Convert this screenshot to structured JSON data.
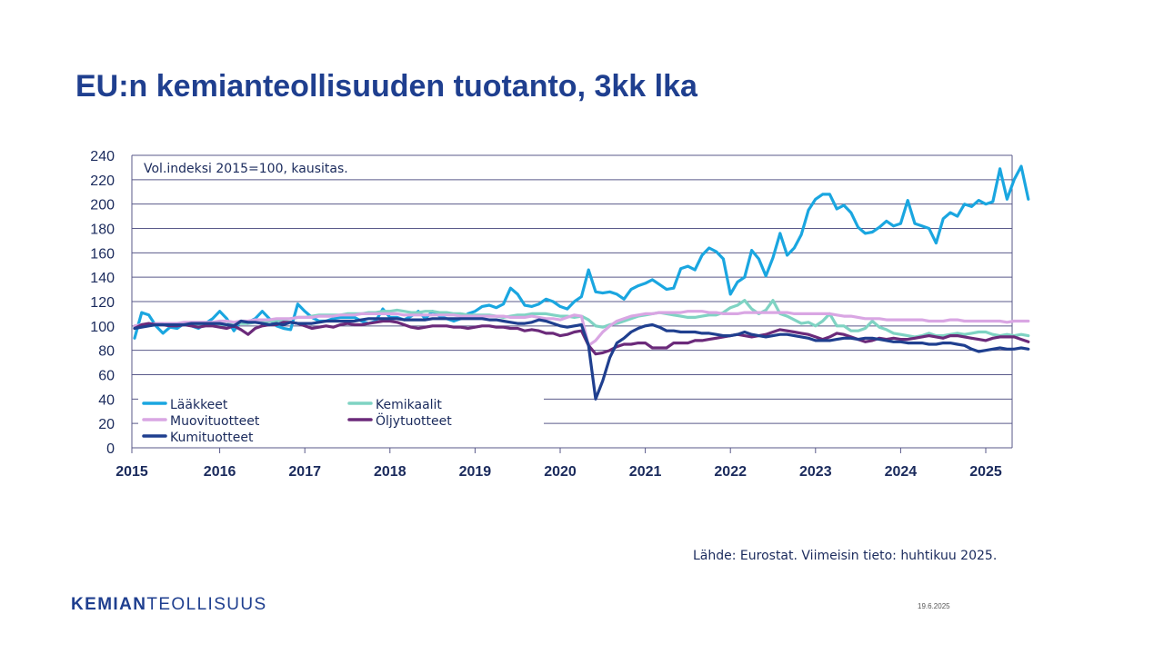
{
  "slide": {
    "title": "EU:n kemianteollisuuden tuotanto, 3kk lka",
    "source_note": "Lähde: Eurostat. Viimeisin tieto: huhtikuu 2025.",
    "logo_bold": "KEMIAN",
    "logo_light": "TEOLLISUUS",
    "date": "19.6.2025"
  },
  "chart_data": {
    "type": "line",
    "annotation": "Vol.indeksi 2015=100, kausitas.",
    "ylim": [
      0,
      240
    ],
    "yticks": [
      0,
      20,
      40,
      60,
      80,
      100,
      120,
      140,
      160,
      180,
      200,
      220,
      240
    ],
    "xticks": [
      "2015",
      "2016",
      "2017",
      "2018",
      "2019",
      "2020",
      "2021",
      "2022",
      "2023",
      "2024",
      "2025"
    ],
    "x_start": "2015-01",
    "grid": true,
    "legend_position": "bottom-left",
    "series": [
      {
        "name": "Lääkkeet",
        "color": "#1aa6e0",
        "values": [
          90,
          111,
          109,
          100,
          94,
          99,
          98,
          102,
          100,
          98,
          102,
          106,
          112,
          106,
          96,
          104,
          103,
          106,
          112,
          106,
          100,
          98,
          97,
          118,
          112,
          107,
          104,
          104,
          106,
          107,
          107,
          107,
          104,
          102,
          104,
          114,
          107,
          107,
          105,
          108,
          112,
          106,
          112,
          108,
          106,
          104,
          106,
          110,
          112,
          116,
          117,
          115,
          118,
          131,
          126,
          117,
          116,
          118,
          122,
          120,
          116,
          114,
          120,
          124,
          146,
          128,
          127,
          128,
          126,
          122,
          130,
          133,
          135,
          138,
          134,
          130,
          131,
          147,
          149,
          146,
          158,
          164,
          161,
          155,
          126,
          136,
          140,
          162,
          155,
          141,
          156,
          176,
          158,
          164,
          175,
          195,
          204,
          208,
          208,
          196,
          199,
          193,
          181,
          176,
          177,
          181,
          186,
          182,
          184,
          203,
          184,
          182,
          180,
          168,
          188,
          193,
          190,
          200,
          198,
          203,
          200,
          202,
          229,
          204,
          220,
          231,
          204
        ]
      },
      {
        "name": "Kemikaalit",
        "color": "#7fd3c3",
        "values": [
          100,
          101,
          101,
          101,
          101,
          100,
          101,
          101,
          101,
          100,
          101,
          101,
          101,
          101,
          102,
          102,
          102,
          103,
          103,
          104,
          104,
          105,
          106,
          107,
          107,
          108,
          109,
          109,
          109,
          109,
          110,
          110,
          110,
          111,
          111,
          112,
          112,
          113,
          112,
          111,
          111,
          112,
          112,
          111,
          111,
          110,
          110,
          109,
          109,
          109,
          109,
          108,
          107,
          108,
          109,
          109,
          110,
          110,
          110,
          109,
          108,
          108,
          107,
          108,
          105,
          100,
          99,
          101,
          102,
          104,
          106,
          108,
          109,
          110,
          111,
          110,
          109,
          108,
          107,
          107,
          108,
          109,
          109,
          111,
          115,
          117,
          121,
          114,
          110,
          113,
          121,
          110,
          108,
          105,
          102,
          103,
          100,
          104,
          110,
          100,
          100,
          96,
          96,
          98,
          104,
          99,
          97,
          94,
          93,
          92,
          91,
          92,
          94,
          92,
          92,
          93,
          94,
          93,
          94,
          95,
          95,
          93,
          92,
          93,
          92,
          93,
          92
        ]
      },
      {
        "name": "Muovituotteet",
        "color": "#d9a6e3",
        "values": [
          100,
          101,
          101,
          102,
          102,
          102,
          102,
          103,
          103,
          103,
          103,
          103,
          104,
          104,
          103,
          104,
          104,
          105,
          105,
          105,
          106,
          106,
          106,
          107,
          107,
          107,
          108,
          108,
          108,
          109,
          109,
          109,
          110,
          110,
          110,
          110,
          110,
          110,
          109,
          109,
          109,
          109,
          109,
          109,
          109,
          109,
          108,
          108,
          108,
          108,
          108,
          108,
          108,
          107,
          107,
          107,
          108,
          107,
          106,
          106,
          105,
          107,
          109,
          108,
          84,
          88,
          95,
          100,
          104,
          106,
          108,
          109,
          110,
          110,
          111,
          111,
          111,
          111,
          112,
          112,
          112,
          111,
          111,
          110,
          110,
          110,
          111,
          111,
          111,
          111,
          111,
          111,
          111,
          110,
          110,
          110,
          110,
          110,
          110,
          109,
          108,
          108,
          107,
          106,
          106,
          106,
          105,
          105,
          105,
          105,
          105,
          105,
          104,
          104,
          104,
          105,
          105,
          104,
          104,
          104,
          104,
          104,
          104,
          103,
          104,
          104,
          104
        ]
      },
      {
        "name": "Öljytuotteet",
        "color": "#6b2a7a",
        "values": [
          98,
          101,
          102,
          101,
          101,
          100,
          100,
          101,
          100,
          99,
          100,
          100,
          99,
          98,
          100,
          97,
          93,
          98,
          100,
          101,
          101,
          103,
          103,
          102,
          100,
          98,
          99,
          100,
          99,
          101,
          102,
          101,
          101,
          102,
          103,
          104,
          104,
          103,
          101,
          99,
          98,
          99,
          100,
          100,
          100,
          99,
          99,
          98,
          99,
          100,
          100,
          99,
          99,
          98,
          98,
          96,
          97,
          96,
          94,
          94,
          92,
          93,
          95,
          96,
          84,
          77,
          78,
          80,
          83,
          85,
          85,
          86,
          86,
          82,
          82,
          82,
          86,
          86,
          86,
          88,
          88,
          89,
          90,
          91,
          92,
          93,
          92,
          91,
          92,
          93,
          95,
          97,
          96,
          95,
          94,
          93,
          91,
          89,
          91,
          94,
          93,
          91,
          89,
          87,
          88,
          90,
          89,
          90,
          89,
          89,
          90,
          91,
          92,
          91,
          90,
          92,
          92,
          91,
          90,
          89,
          88,
          90,
          91,
          91,
          91,
          89,
          87
        ]
      },
      {
        "name": "Kumituotteet",
        "color": "#1f3f8f",
        "values": [
          98,
          99,
          100,
          101,
          101,
          101,
          101,
          101,
          102,
          102,
          102,
          102,
          102,
          101,
          100,
          104,
          103,
          103,
          102,
          101,
          102,
          101,
          103,
          102,
          102,
          102,
          103,
          104,
          104,
          104,
          104,
          104,
          105,
          106,
          106,
          106,
          106,
          106,
          105,
          105,
          105,
          105,
          106,
          106,
          106,
          106,
          106,
          106,
          106,
          106,
          105,
          105,
          104,
          103,
          102,
          102,
          103,
          105,
          104,
          102,
          100,
          99,
          100,
          101,
          84,
          40,
          55,
          74,
          86,
          90,
          95,
          98,
          100,
          101,
          99,
          96,
          96,
          95,
          95,
          95,
          94,
          94,
          93,
          92,
          92,
          93,
          95,
          93,
          92,
          91,
          92,
          93,
          93,
          92,
          91,
          90,
          88,
          88,
          88,
          89,
          90,
          90,
          89,
          90,
          90,
          89,
          88,
          87,
          87,
          86,
          86,
          86,
          85,
          85,
          86,
          86,
          85,
          84,
          81,
          79,
          80,
          81,
          82,
          81,
          81,
          82,
          81
        ]
      }
    ]
  }
}
